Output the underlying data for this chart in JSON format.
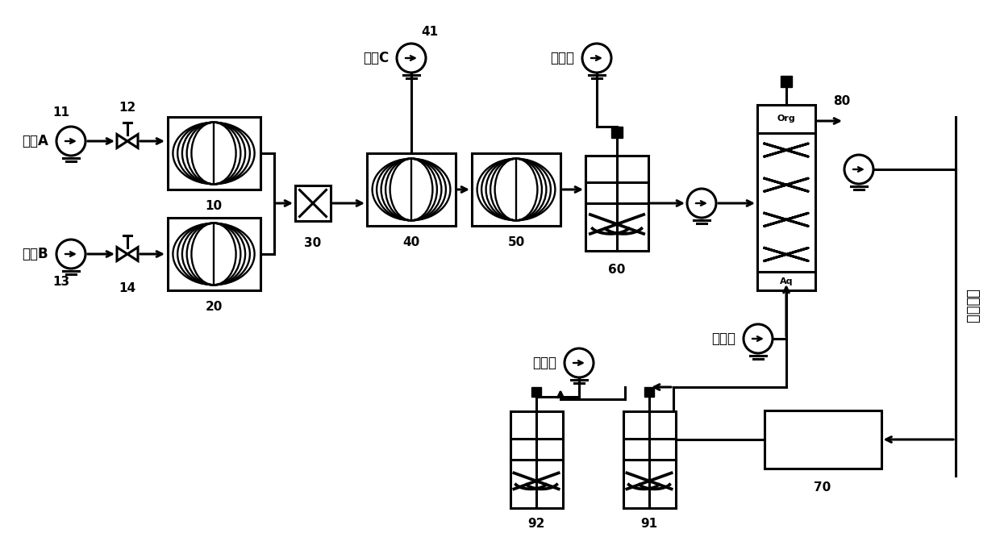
{
  "bg_color": "#ffffff",
  "lw": 2.2,
  "labels": {
    "solA": "溶液A",
    "solB": "溶液B",
    "solC": "溶液C",
    "quench": "淬灭剂",
    "extract": "萃取剂",
    "antisolv": "反溶剂",
    "unit": "制备单元",
    "org": "Org",
    "aq": "Aq"
  },
  "nums": [
    "11",
    "12",
    "10",
    "13",
    "14",
    "20",
    "30",
    "41",
    "40",
    "50",
    "60",
    "80",
    "70",
    "91",
    "92"
  ]
}
